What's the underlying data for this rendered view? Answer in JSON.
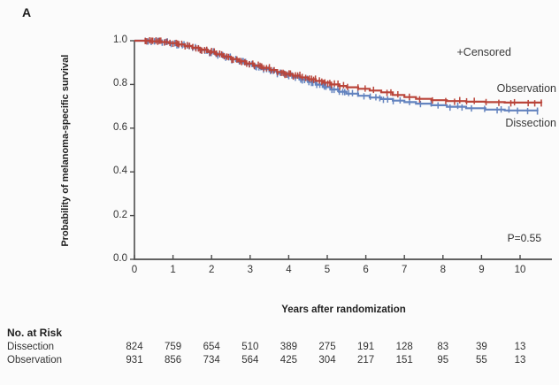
{
  "figure": {
    "panel_label": "A",
    "p_value": "P=0.55",
    "legend": {
      "censored_label": "+Censored",
      "observation_label": "Observation",
      "dissection_label": "Dissection"
    }
  },
  "chart_data": {
    "type": "line",
    "subtype": "kaplan-meier-step",
    "title": "",
    "xlabel": "Years after randomization",
    "ylabel": "Probability of melanoma-specific survival",
    "xlim": [
      0,
      10.6
    ],
    "ylim": [
      0.0,
      1.0
    ],
    "x_ticks": [
      0,
      1,
      2,
      3,
      4,
      5,
      6,
      7,
      8,
      9,
      10
    ],
    "y_ticks": [
      0.0,
      0.2,
      0.4,
      0.6,
      0.8,
      1.0
    ],
    "grid": false,
    "legend_position": "right-inside",
    "annotations": [
      "+Censored",
      "P=0.55"
    ],
    "censored_marker": "+",
    "series": [
      {
        "name": "Dissection",
        "color": "#6383bf",
        "steps": [
          [
            0,
            1.0
          ],
          [
            0.4,
            0.997
          ],
          [
            0.7,
            0.993
          ],
          [
            0.9,
            0.988
          ],
          [
            1.1,
            0.982
          ],
          [
            1.3,
            0.975
          ],
          [
            1.5,
            0.966
          ],
          [
            1.7,
            0.957
          ],
          [
            1.9,
            0.947
          ],
          [
            2.1,
            0.936
          ],
          [
            2.3,
            0.925
          ],
          [
            2.5,
            0.914
          ],
          [
            2.7,
            0.903
          ],
          [
            2.9,
            0.892
          ],
          [
            3.1,
            0.881
          ],
          [
            3.3,
            0.87
          ],
          [
            3.5,
            0.86
          ],
          [
            3.7,
            0.85
          ],
          [
            3.9,
            0.841
          ],
          [
            4.1,
            0.832
          ],
          [
            4.3,
            0.822
          ],
          [
            4.5,
            0.811
          ],
          [
            4.7,
            0.799
          ],
          [
            4.9,
            0.788
          ],
          [
            5.1,
            0.777
          ],
          [
            5.3,
            0.767
          ],
          [
            5.5,
            0.758
          ],
          [
            5.8,
            0.748
          ],
          [
            6.1,
            0.74
          ],
          [
            6.4,
            0.733
          ],
          [
            6.7,
            0.726
          ],
          [
            7.0,
            0.719
          ],
          [
            7.3,
            0.712
          ],
          [
            7.7,
            0.705
          ],
          [
            8.1,
            0.698
          ],
          [
            8.6,
            0.691
          ],
          [
            9.1,
            0.685
          ],
          [
            9.6,
            0.681
          ],
          [
            10.45,
            0.678
          ]
        ]
      },
      {
        "name": "Observation",
        "color": "#b9453a",
        "steps": [
          [
            0,
            1.0
          ],
          [
            0.4,
            0.997
          ],
          [
            0.7,
            0.994
          ],
          [
            0.9,
            0.989
          ],
          [
            1.1,
            0.983
          ],
          [
            1.3,
            0.976
          ],
          [
            1.5,
            0.968
          ],
          [
            1.7,
            0.959
          ],
          [
            1.9,
            0.949
          ],
          [
            2.1,
            0.938
          ],
          [
            2.3,
            0.927
          ],
          [
            2.5,
            0.916
          ],
          [
            2.7,
            0.906
          ],
          [
            2.9,
            0.896
          ],
          [
            3.1,
            0.886
          ],
          [
            3.3,
            0.876
          ],
          [
            3.5,
            0.866
          ],
          [
            3.7,
            0.857
          ],
          [
            3.9,
            0.848
          ],
          [
            4.1,
            0.84
          ],
          [
            4.3,
            0.832
          ],
          [
            4.5,
            0.824
          ],
          [
            4.7,
            0.816
          ],
          [
            4.9,
            0.808
          ],
          [
            5.1,
            0.8
          ],
          [
            5.3,
            0.793
          ],
          [
            5.5,
            0.787
          ],
          [
            5.8,
            0.78
          ],
          [
            6.1,
            0.772
          ],
          [
            6.4,
            0.764
          ],
          [
            6.7,
            0.752
          ],
          [
            7.0,
            0.742
          ],
          [
            7.3,
            0.734
          ],
          [
            7.7,
            0.728
          ],
          [
            8.1,
            0.724
          ],
          [
            8.6,
            0.721
          ],
          [
            9.1,
            0.719
          ],
          [
            9.6,
            0.717
          ],
          [
            10.55,
            0.715
          ]
        ]
      }
    ]
  },
  "risk_table": {
    "title": "No. at Risk",
    "rows": [
      {
        "label": "Dissection",
        "values": [
          824,
          759,
          654,
          510,
          389,
          275,
          191,
          128,
          83,
          39,
          13
        ]
      },
      {
        "label": "Observation",
        "values": [
          931,
          856,
          734,
          564,
          425,
          304,
          217,
          151,
          95,
          55,
          13
        ]
      }
    ]
  },
  "colors": {
    "observation": "#b9453a",
    "dissection": "#6383bf",
    "axis": "#4d4d4d",
    "text": "#2e2e2e"
  }
}
